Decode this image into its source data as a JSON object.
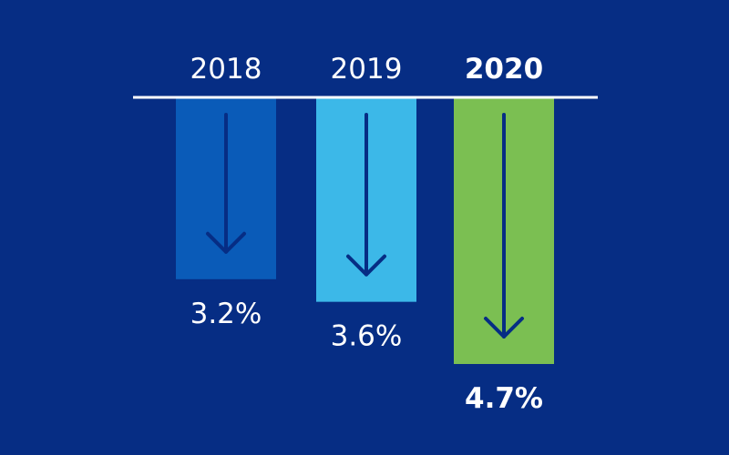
{
  "chart_data": {
    "type": "bar",
    "orientation": "downward",
    "categories": [
      "2018",
      "2019",
      "2020"
    ],
    "values": [
      3.2,
      3.6,
      4.7
    ],
    "value_labels": [
      "3.2%",
      "3.6%",
      "4.7%"
    ],
    "highlighted_category": "2020",
    "bar_colors": [
      "#0a5bb8",
      "#3cb8e8",
      "#7bbf52"
    ],
    "arrow_color": "#062d84",
    "background_color": "#062d84",
    "baseline_color": "#ffffff",
    "label_color": "#ffffff",
    "ylim": [
      0,
      4.7
    ],
    "grid": false,
    "legend": "none"
  }
}
